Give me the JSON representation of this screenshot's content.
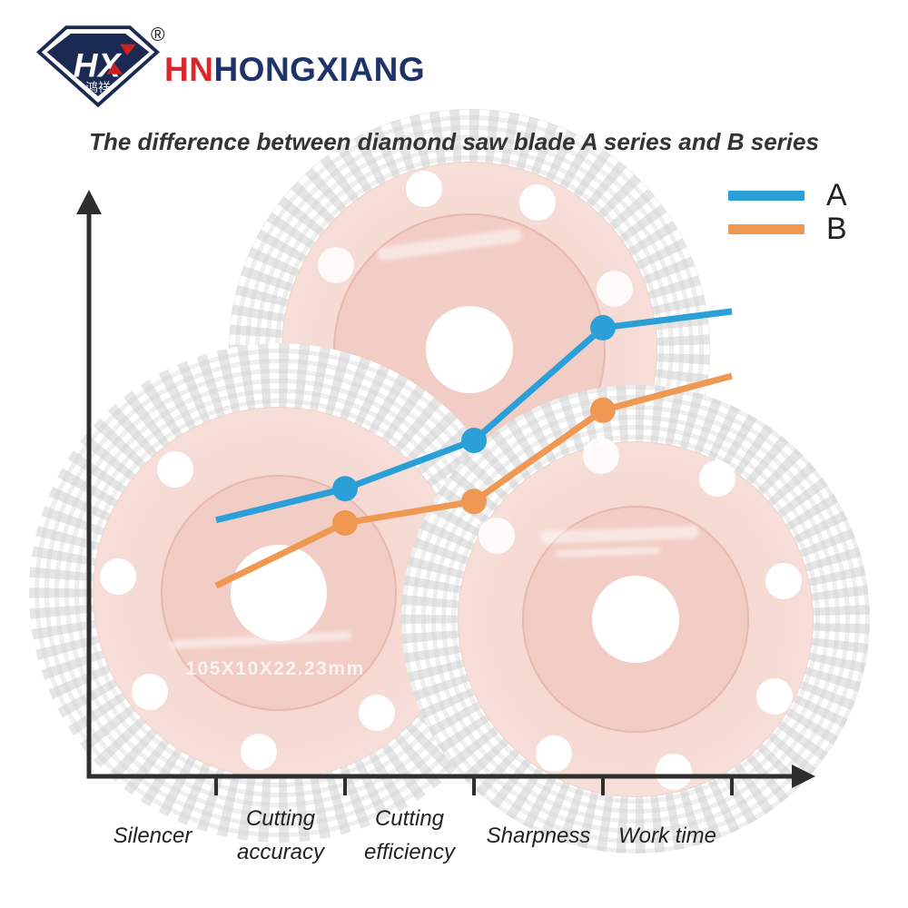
{
  "brand": {
    "logo_letters_h": "H",
    "logo_letters_x": "X",
    "logo_cn": "鸿祥",
    "registered_mark": "®",
    "name_prefix": "HN",
    "name_rest": "HONGXIANG"
  },
  "title": "The difference between diamond saw blade A series and B series",
  "chart_data": {
    "type": "line",
    "title": "The difference between diamond saw blade A series and B series",
    "categories": [
      "Silencer",
      "Cutting accuracy",
      "Cutting efficiency",
      "Sharpness",
      "Work time"
    ],
    "category_lines": [
      [
        "Silencer"
      ],
      [
        "Cutting",
        "accuracy"
      ],
      [
        "Cutting",
        "efficiency"
      ],
      [
        "Sharpness"
      ],
      [
        "Work time"
      ]
    ],
    "series": [
      {
        "name": "A",
        "color": "#2BA0D8",
        "values": [
          44.1,
          49.5,
          57.8,
          77.2,
          80.0
        ]
      },
      {
        "name": "B",
        "color": "#EE9852",
        "values": [
          32.8,
          43.6,
          47.3,
          63.0,
          68.9
        ]
      }
    ],
    "ylim": [
      0,
      100
    ],
    "y_axis_labels": "none",
    "grid": "off",
    "legend_position": "top-right",
    "marker_indices": [
      1,
      2,
      3
    ]
  },
  "background": {
    "disc_label": "105X10X22.23mm"
  },
  "colors": {
    "series_a": "#2BA0D8",
    "series_b": "#EE9852",
    "axis": "#2e2e2e",
    "brand_red": "#D9282C",
    "brand_navy": "#1F336B",
    "logo_navy": "#1B2A52",
    "title_text": "#333333",
    "label_text": "#222222"
  }
}
